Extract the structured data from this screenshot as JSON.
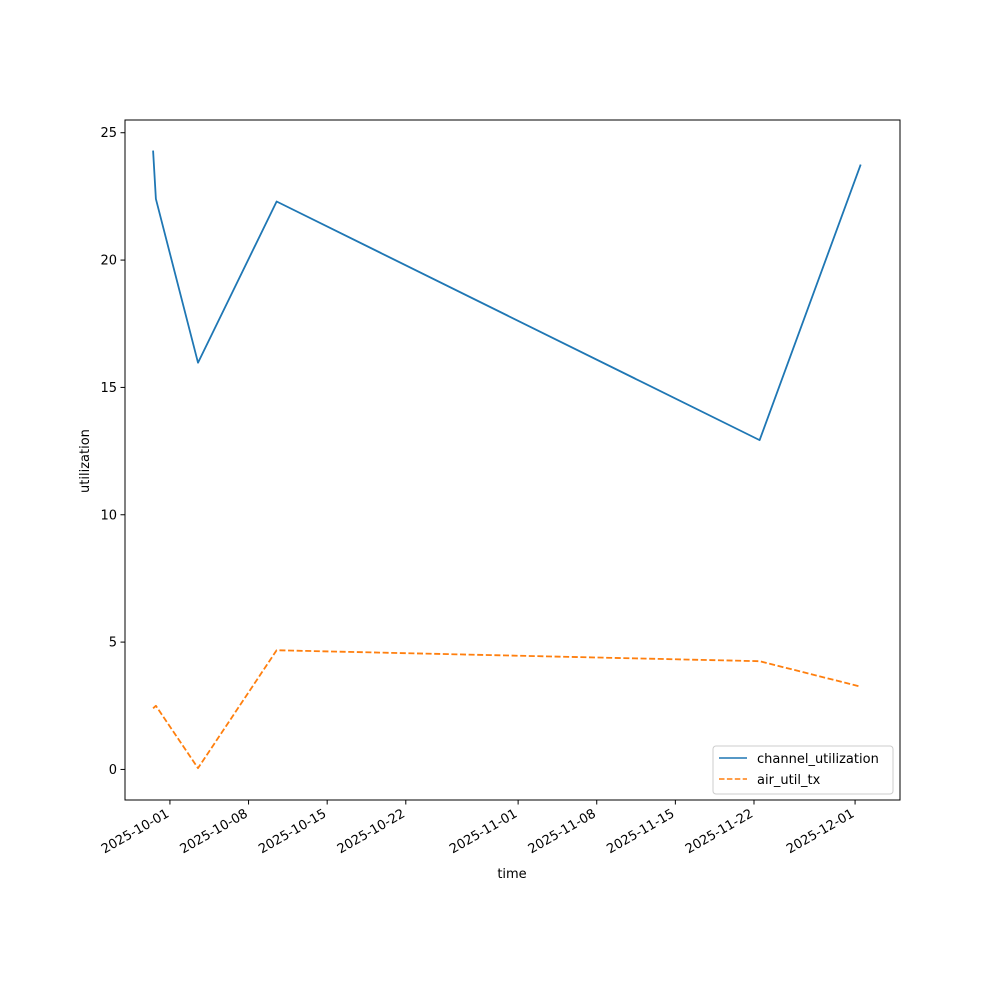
{
  "chart_data": {
    "type": "line",
    "title": "",
    "xlabel": "time",
    "ylabel": "utilization",
    "x_type": "date",
    "xlim": [
      "2025-09-27",
      "2025-12-05"
    ],
    "ylim": [
      -1.2,
      25.5
    ],
    "x_ticks": [
      "2025-10-01",
      "2025-10-08",
      "2025-10-15",
      "2025-10-22",
      "2025-11-01",
      "2025-11-08",
      "2025-11-15",
      "2025-11-22",
      "2025-12-01"
    ],
    "y_ticks": [
      0,
      5,
      10,
      15,
      20,
      25
    ],
    "grid": false,
    "legend_position": "lower right",
    "series": [
      {
        "name": "channel_utilization",
        "color": "#1f77b4",
        "style": "solid",
        "points": [
          {
            "x": "2025-09-29T12:00",
            "y": 24.3
          },
          {
            "x": "2025-09-29T18:00",
            "y": 22.4
          },
          {
            "x": "2025-10-03T12:00",
            "y": 15.97
          },
          {
            "x": "2025-10-10T12:00",
            "y": 22.3
          },
          {
            "x": "2025-11-22T12:00",
            "y": 12.93
          },
          {
            "x": "2025-12-01T12:00",
            "y": 23.75
          }
        ]
      },
      {
        "name": "air_util_tx",
        "color": "#ff7f0e",
        "style": "dashed",
        "points": [
          {
            "x": "2025-09-29T12:00",
            "y": 2.4
          },
          {
            "x": "2025-09-29T18:00",
            "y": 2.5
          },
          {
            "x": "2025-10-03T12:00",
            "y": 0.05
          },
          {
            "x": "2025-10-10T12:00",
            "y": 4.68
          },
          {
            "x": "2025-11-22T12:00",
            "y": 4.25
          },
          {
            "x": "2025-12-01T12:00",
            "y": 3.25
          }
        ]
      }
    ]
  }
}
